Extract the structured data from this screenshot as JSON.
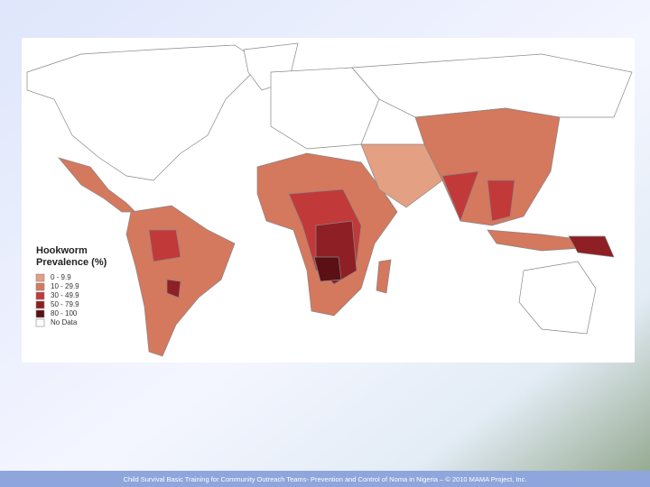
{
  "map": {
    "legend": {
      "title_lines": [
        "Hookworm",
        "Prevalence (%)"
      ],
      "items": [
        {
          "label": "0 - 9.9",
          "color": "#e3a083"
        },
        {
          "label": "10 - 29.9",
          "color": "#d4785e"
        },
        {
          "label": "30 - 49.9",
          "color": "#c2393a"
        },
        {
          "label": "50 - 79.9",
          "color": "#8e1f24"
        },
        {
          "label": "80 - 100",
          "color": "#5a1014"
        },
        {
          "label": "No Data",
          "color": "#ffffff"
        }
      ]
    }
  },
  "footer": {
    "text": "Child Survival Basic Training for Community Outreach Teams- Prevention and Control of Noma in Nigeria – © 2010 MAMA Project, Inc."
  }
}
